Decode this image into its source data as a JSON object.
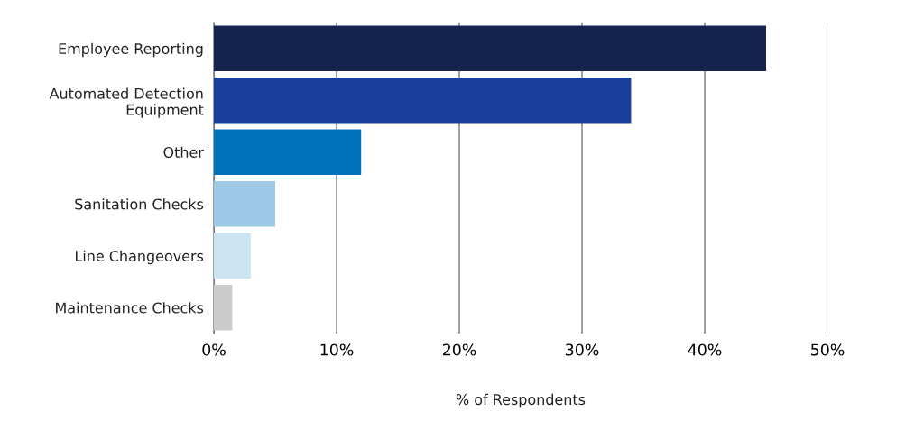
{
  "chart_data": {
    "type": "bar",
    "orientation": "horizontal",
    "xlabel": "% of Respondents",
    "categories": [
      "Employee Reporting",
      "Automated Detection\nEquipment",
      "Other",
      "Sanitation Checks",
      "Line Changeovers",
      "Maintenance Checks"
    ],
    "values": [
      45,
      34,
      12,
      5,
      3,
      1.5
    ],
    "colors": [
      "#14244f",
      "#173f9b",
      "#0071bc",
      "#9dc8e6",
      "#cce3f2",
      "#cccccc"
    ],
    "xlim": [
      0,
      50
    ],
    "xticks": [
      {
        "value": 0,
        "label": "0%"
      },
      {
        "value": 10,
        "label": "10%"
      },
      {
        "value": 20,
        "label": "20%"
      },
      {
        "value": 30,
        "label": "30%"
      },
      {
        "value": 40,
        "label": "40%"
      },
      {
        "value": 50,
        "label": "50%"
      }
    ],
    "grid": "x",
    "legend": false
  }
}
